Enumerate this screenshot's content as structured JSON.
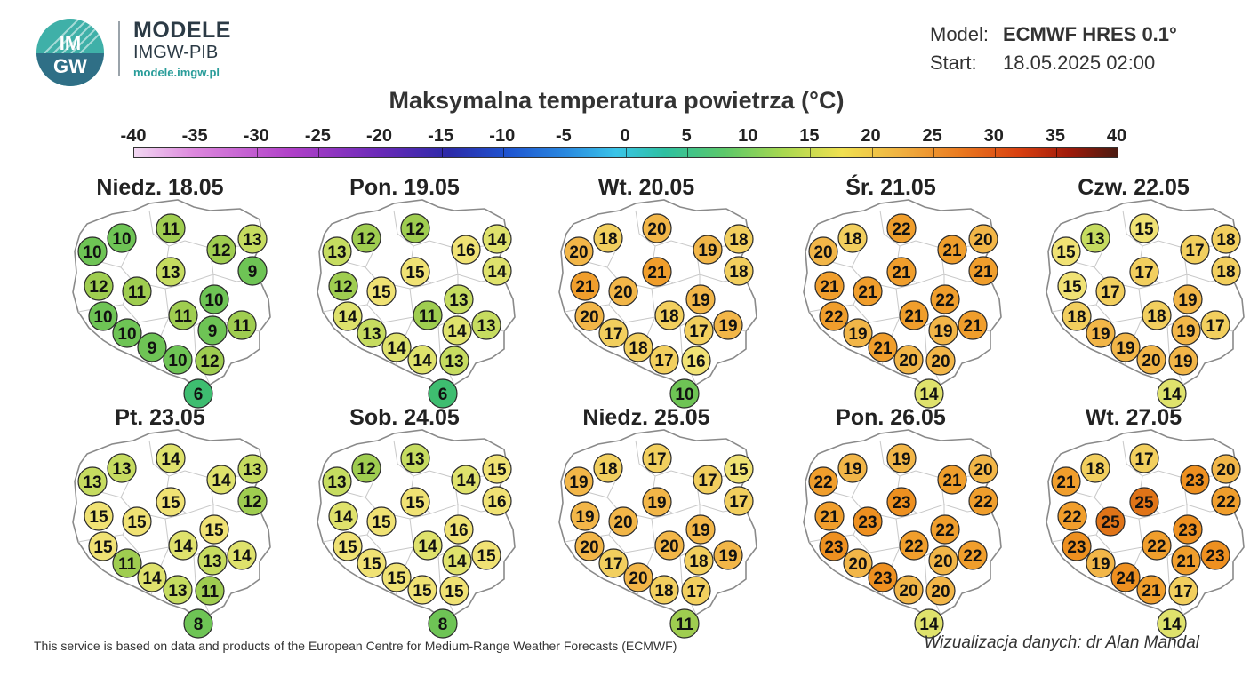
{
  "brand": {
    "logo_text_top": "IM",
    "logo_text_bottom": "GW",
    "name": "MODELE",
    "org": "IMGW-PIB",
    "url": "modele.imgw.pl"
  },
  "meta": {
    "model_label": "Model:",
    "model_value": "ECMWF HRES 0.1°",
    "start_label": "Start:",
    "start_value": "18.05.2025 02:00"
  },
  "title": "Maksymalna temperatura powietrza (°C)",
  "scale": {
    "ticks": [
      "-40",
      "-35",
      "-30",
      "-25",
      "-20",
      "-15",
      "-10",
      "-5",
      "0",
      "5",
      "10",
      "15",
      "20",
      "25",
      "30",
      "35",
      "40"
    ],
    "min": -40,
    "max": 40
  },
  "color_stops": [
    {
      "t": 6,
      "color": "#3ebd70"
    },
    {
      "t": 9,
      "color": "#6ec455"
    },
    {
      "t": 11,
      "color": "#9fcd50"
    },
    {
      "t": 13,
      "color": "#c6dc60"
    },
    {
      "t": 14,
      "color": "#dfe26c"
    },
    {
      "t": 15,
      "color": "#f0e274"
    },
    {
      "t": 17,
      "color": "#f2cf5e"
    },
    {
      "t": 19,
      "color": "#f2b648"
    },
    {
      "t": 21,
      "color": "#f09e2c"
    },
    {
      "t": 23,
      "color": "#ee9020"
    },
    {
      "t": 25,
      "color": "#e07418"
    }
  ],
  "days": [
    {
      "label": "Niedz. 18.05",
      "values": [
        10,
        11,
        12,
        13,
        10,
        13,
        9,
        12,
        11,
        10,
        10,
        11,
        9,
        11,
        10,
        9,
        10,
        12,
        6
      ]
    },
    {
      "label": "Pon. 19.05",
      "values": [
        12,
        12,
        16,
        14,
        13,
        15,
        14,
        12,
        15,
        13,
        14,
        11,
        14,
        13,
        13,
        14,
        14,
        13,
        6
      ]
    },
    {
      "label": "Wt. 20.05",
      "values": [
        18,
        20,
        19,
        18,
        20,
        21,
        18,
        21,
        20,
        19,
        20,
        18,
        17,
        19,
        17,
        18,
        17,
        16,
        10
      ]
    },
    {
      "label": "Śr. 21.05",
      "values": [
        18,
        22,
        21,
        20,
        20,
        21,
        21,
        21,
        21,
        22,
        22,
        21,
        19,
        21,
        19,
        21,
        20,
        20,
        14
      ]
    },
    {
      "label": "Czw. 22.05",
      "values": [
        13,
        15,
        17,
        18,
        15,
        17,
        18,
        15,
        17,
        19,
        18,
        18,
        19,
        17,
        19,
        19,
        20,
        19,
        14
      ]
    },
    {
      "label": "Pt. 23.05",
      "values": [
        13,
        14,
        14,
        13,
        13,
        15,
        12,
        15,
        15,
        15,
        15,
        14,
        13,
        14,
        11,
        14,
        13,
        11,
        8
      ]
    },
    {
      "label": "Sob. 24.05",
      "values": [
        12,
        13,
        14,
        15,
        13,
        15,
        16,
        14,
        15,
        16,
        15,
        14,
        14,
        15,
        15,
        15,
        15,
        15,
        8
      ]
    },
    {
      "label": "Niedz. 25.05",
      "values": [
        18,
        17,
        17,
        15,
        19,
        19,
        17,
        19,
        20,
        19,
        20,
        20,
        18,
        19,
        17,
        20,
        18,
        17,
        11
      ]
    },
    {
      "label": "Pon. 26.05",
      "values": [
        19,
        19,
        21,
        20,
        22,
        23,
        22,
        21,
        23,
        22,
        23,
        22,
        20,
        22,
        20,
        23,
        20,
        20,
        14
      ]
    },
    {
      "label": "Wt. 27.05",
      "values": [
        18,
        17,
        23,
        20,
        21,
        25,
        22,
        22,
        25,
        23,
        23,
        22,
        21,
        23,
        19,
        24,
        21,
        17,
        14
      ]
    }
  ],
  "footer": {
    "left": "This service is based on data and products of the European Centre for Medium-Range Weather Forecasts (ECMWF)",
    "right": "Wizualizacja danych: dr Alan Mandal"
  }
}
